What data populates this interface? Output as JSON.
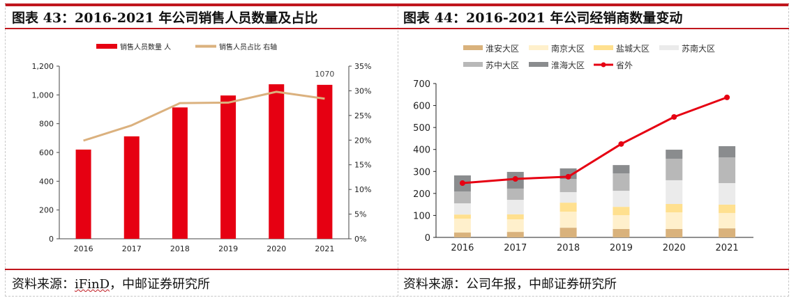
{
  "panels": [
    {
      "title": "图表 43：2016-2021 年公司销售人员数量及占比",
      "source_prefix": "资料来源：",
      "source_link": "iFinD",
      "source_suffix": "，中邮证券研究所"
    },
    {
      "title": "图表 44：2016-2021 年公司经销商数量变动",
      "source_prefix": "资料来源：",
      "source_link": "",
      "source_suffix": "公司年报，中邮证券研究所"
    }
  ],
  "chart_data": [
    {
      "type": "bar",
      "title": "2016-2021 年公司销售人员数量及占比",
      "categories": [
        "2016",
        "2017",
        "2018",
        "2019",
        "2020",
        "2021"
      ],
      "series": [
        {
          "name": "销售人员数量 人",
          "type": "bar",
          "axis": "left",
          "color": "#e60012",
          "values": [
            620,
            712,
            913,
            996,
            1074,
            1070
          ]
        },
        {
          "name": "销售人员占比 右轴",
          "type": "line",
          "axis": "right",
          "color": "#dbb17e",
          "values": [
            19.9,
            23.0,
            27.5,
            27.6,
            29.8,
            28.4
          ]
        }
      ],
      "annotations": [
        {
          "category": "2021",
          "text": "1070"
        }
      ],
      "y_left": {
        "min": 0,
        "max": 1200,
        "ticks": [
          "0",
          "200",
          "400",
          "600",
          "800",
          "1,000",
          "1,200"
        ]
      },
      "y_right": {
        "min": 0,
        "max": 35,
        "ticks": [
          "0%",
          "5%",
          "10%",
          "15%",
          "20%",
          "25%",
          "30%",
          "35%"
        ]
      },
      "legend": "top",
      "grid": false
    },
    {
      "type": "bar",
      "stacked": true,
      "title": "2016-2021 年公司经销商数量变动",
      "categories": [
        "2016",
        "2017",
        "2018",
        "2019",
        "2020",
        "2021"
      ],
      "series": [
        {
          "name": "淮安大区",
          "type": "bar",
          "color": "#d9b27c",
          "values": [
            22,
            25,
            44,
            38,
            38,
            41
          ]
        },
        {
          "name": "南京大区",
          "type": "bar",
          "color": "#fff0cc",
          "values": [
            63,
            57,
            73,
            63,
            76,
            70
          ]
        },
        {
          "name": "盐城大区",
          "type": "bar",
          "color": "#ffe08f",
          "values": [
            19,
            23,
            41,
            38,
            38,
            38
          ]
        },
        {
          "name": "苏南大区",
          "type": "bar",
          "color": "#ebebeb",
          "values": [
            51,
            66,
            48,
            73,
            108,
            98
          ]
        },
        {
          "name": "苏中大区",
          "type": "bar",
          "color": "#b8b8b8",
          "values": [
            54,
            51,
            60,
            79,
            98,
            117
          ]
        },
        {
          "name": "淮海大区",
          "type": "bar",
          "color": "#8a8c8e",
          "values": [
            73,
            76,
            48,
            38,
            41,
            51
          ]
        },
        {
          "name": "省外",
          "type": "line",
          "color": "#e60012",
          "values": [
            247,
            266,
            276,
            425,
            548,
            637
          ]
        }
      ],
      "y": {
        "min": 0,
        "max": 700,
        "ticks": [
          "0",
          "100",
          "200",
          "300",
          "400",
          "500",
          "600",
          "700"
        ]
      },
      "legend": "top",
      "grid": false
    }
  ]
}
